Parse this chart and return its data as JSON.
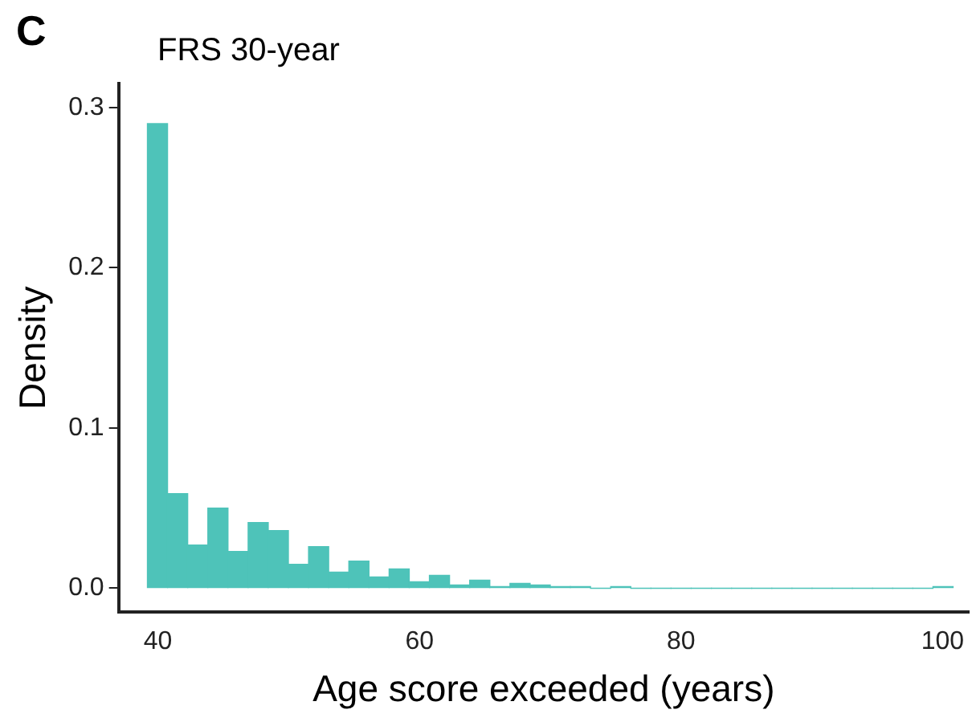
{
  "chart_data": {
    "type": "histogram",
    "title": "FRS 30-year",
    "xlabel": "Age score exceeded (years)",
    "ylabel": "Density",
    "annotations": [
      "C"
    ],
    "bins": [
      39.2,
      40.74,
      42.28,
      43.82,
      45.36,
      46.9,
      48.44,
      49.98,
      51.52,
      53.06,
      54.6,
      56.14,
      57.68,
      59.22,
      60.76,
      62.3,
      63.84,
      65.38,
      66.92,
      68.46,
      70,
      71.54,
      73.08,
      74.62,
      76.16,
      77.7,
      79.24,
      80.78,
      82.32,
      83.86,
      85.4,
      86.94,
      88.48,
      90.02,
      91.56,
      93.1,
      94.64,
      96.18,
      97.72,
      99.26,
      100.8
    ],
    "values": [
      0.29,
      0.059,
      0.027,
      0.05,
      0.023,
      0.041,
      0.036,
      0.015,
      0.026,
      0.01,
      0.017,
      0.007,
      0.012,
      0.004,
      0.008,
      0.002,
      0.005,
      0.001,
      0.003,
      0.002,
      0.001,
      0.001,
      0,
      0.001,
      0,
      0,
      0,
      0,
      0,
      0,
      0,
      0,
      0,
      0,
      0,
      0,
      0,
      0,
      0,
      0.001
    ],
    "color": "#4ec3b9",
    "xlim": [
      37,
      102
    ],
    "xticks": [
      40,
      60,
      80,
      100
    ],
    "ylim": [
      -0.015,
      0.315
    ],
    "yticks": [
      {
        "value": 0,
        "label": "0.0"
      },
      0.1,
      0.2,
      0.3
    ],
    "grid": false,
    "legend": false
  }
}
